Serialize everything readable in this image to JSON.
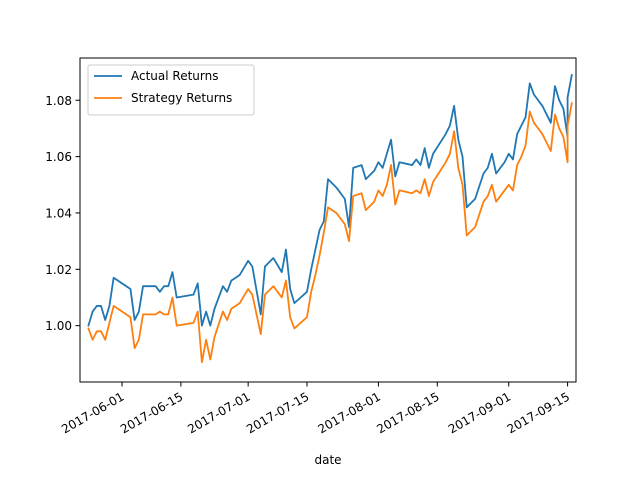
{
  "chart_data": {
    "type": "line",
    "title": "",
    "xlabel": "date",
    "ylabel": "",
    "x_axis_type": "date",
    "xlim": [
      "2017-05-22",
      "2017-09-17"
    ],
    "ylim": [
      0.98,
      1.095
    ],
    "x_ticks": [
      "2017-06-01",
      "2017-06-15",
      "2017-07-01",
      "2017-07-15",
      "2017-08-01",
      "2017-08-15",
      "2017-09-01",
      "2017-09-15"
    ],
    "y_ticks": [
      1.0,
      1.02,
      1.04,
      1.06,
      1.08
    ],
    "y_tick_labels": [
      "1.00",
      "1.02",
      "1.04",
      "1.06",
      "1.08"
    ],
    "grid": false,
    "legend": {
      "position": "upper-left",
      "entries": [
        "Actual Returns",
        "Strategy Returns"
      ]
    },
    "series": [
      {
        "name": "Actual Returns",
        "color": "#1f77b4",
        "points": [
          [
            "2017-05-24",
            1.0
          ],
          [
            "2017-05-25",
            1.005
          ],
          [
            "2017-05-26",
            1.007
          ],
          [
            "2017-05-27",
            1.007
          ],
          [
            "2017-05-28",
            1.002
          ],
          [
            "2017-05-29",
            1.007
          ],
          [
            "2017-05-30",
            1.017
          ],
          [
            "2017-06-03",
            1.013
          ],
          [
            "2017-06-04",
            1.002
          ],
          [
            "2017-06-05",
            1.005
          ],
          [
            "2017-06-06",
            1.014
          ],
          [
            "2017-06-09",
            1.014
          ],
          [
            "2017-06-10",
            1.012
          ],
          [
            "2017-06-11",
            1.014
          ],
          [
            "2017-06-12",
            1.014
          ],
          [
            "2017-06-13",
            1.019
          ],
          [
            "2017-06-14",
            1.01
          ],
          [
            "2017-06-18",
            1.011
          ],
          [
            "2017-06-19",
            1.015
          ],
          [
            "2017-06-20",
            1.0
          ],
          [
            "2017-06-21",
            1.005
          ],
          [
            "2017-06-22",
            1.0
          ],
          [
            "2017-06-23",
            1.006
          ],
          [
            "2017-06-25",
            1.014
          ],
          [
            "2017-06-26",
            1.012
          ],
          [
            "2017-06-27",
            1.016
          ],
          [
            "2017-06-29",
            1.018
          ],
          [
            "2017-07-01",
            1.023
          ],
          [
            "2017-07-02",
            1.021
          ],
          [
            "2017-07-04",
            1.004
          ],
          [
            "2017-07-05",
            1.021
          ],
          [
            "2017-07-07",
            1.024
          ],
          [
            "2017-07-09",
            1.019
          ],
          [
            "2017-07-10",
            1.027
          ],
          [
            "2017-07-11",
            1.013
          ],
          [
            "2017-07-12",
            1.008
          ],
          [
            "2017-07-15",
            1.012
          ],
          [
            "2017-07-16",
            1.02
          ],
          [
            "2017-07-17",
            1.027
          ],
          [
            "2017-07-18",
            1.034
          ],
          [
            "2017-07-19",
            1.037
          ],
          [
            "2017-07-20",
            1.052
          ],
          [
            "2017-07-22",
            1.049
          ],
          [
            "2017-07-24",
            1.045
          ],
          [
            "2017-07-25",
            1.035
          ],
          [
            "2017-07-26",
            1.056
          ],
          [
            "2017-07-28",
            1.057
          ],
          [
            "2017-07-29",
            1.052
          ],
          [
            "2017-07-31",
            1.055
          ],
          [
            "2017-08-01",
            1.058
          ],
          [
            "2017-08-02",
            1.056
          ],
          [
            "2017-08-03",
            1.061
          ],
          [
            "2017-08-04",
            1.066
          ],
          [
            "2017-08-05",
            1.053
          ],
          [
            "2017-08-06",
            1.058
          ],
          [
            "2017-08-09",
            1.057
          ],
          [
            "2017-08-10",
            1.059
          ],
          [
            "2017-08-11",
            1.057
          ],
          [
            "2017-08-12",
            1.063
          ],
          [
            "2017-08-13",
            1.056
          ],
          [
            "2017-08-14",
            1.061
          ],
          [
            "2017-08-17",
            1.068
          ],
          [
            "2017-08-18",
            1.071
          ],
          [
            "2017-08-19",
            1.078
          ],
          [
            "2017-08-20",
            1.066
          ],
          [
            "2017-08-21",
            1.06
          ],
          [
            "2017-08-22",
            1.042
          ],
          [
            "2017-08-24",
            1.045
          ],
          [
            "2017-08-26",
            1.054
          ],
          [
            "2017-08-27",
            1.056
          ],
          [
            "2017-08-28",
            1.061
          ],
          [
            "2017-08-29",
            1.054
          ],
          [
            "2017-08-31",
            1.058
          ],
          [
            "2017-09-01",
            1.061
          ],
          [
            "2017-09-02",
            1.059
          ],
          [
            "2017-09-03",
            1.068
          ],
          [
            "2017-09-04",
            1.071
          ],
          [
            "2017-09-05",
            1.074
          ],
          [
            "2017-09-06",
            1.086
          ],
          [
            "2017-09-07",
            1.082
          ],
          [
            "2017-09-09",
            1.078
          ],
          [
            "2017-09-11",
            1.072
          ],
          [
            "2017-09-12",
            1.085
          ],
          [
            "2017-09-13",
            1.08
          ],
          [
            "2017-09-14",
            1.077
          ],
          [
            "2017-09-15",
            1.067
          ],
          [
            "2017-09-15",
            1.081
          ],
          [
            "2017-09-16",
            1.089
          ]
        ]
      },
      {
        "name": "Strategy Returns",
        "color": "#ff7f0e",
        "points": [
          [
            "2017-05-24",
            0.999
          ],
          [
            "2017-05-25",
            0.995
          ],
          [
            "2017-05-26",
            0.998
          ],
          [
            "2017-05-27",
            0.998
          ],
          [
            "2017-05-28",
            0.995
          ],
          [
            "2017-05-29",
            1.001
          ],
          [
            "2017-05-30",
            1.007
          ],
          [
            "2017-06-03",
            1.003
          ],
          [
            "2017-06-04",
            0.992
          ],
          [
            "2017-06-05",
            0.995
          ],
          [
            "2017-06-06",
            1.004
          ],
          [
            "2017-06-09",
            1.004
          ],
          [
            "2017-06-10",
            1.005
          ],
          [
            "2017-06-11",
            1.004
          ],
          [
            "2017-06-12",
            1.004
          ],
          [
            "2017-06-13",
            1.01
          ],
          [
            "2017-06-14",
            1.0
          ],
          [
            "2017-06-18",
            1.001
          ],
          [
            "2017-06-19",
            1.005
          ],
          [
            "2017-06-20",
            0.987
          ],
          [
            "2017-06-21",
            0.995
          ],
          [
            "2017-06-22",
            0.988
          ],
          [
            "2017-06-23",
            0.996
          ],
          [
            "2017-06-25",
            1.005
          ],
          [
            "2017-06-26",
            1.002
          ],
          [
            "2017-06-27",
            1.006
          ],
          [
            "2017-06-29",
            1.008
          ],
          [
            "2017-07-01",
            1.013
          ],
          [
            "2017-07-02",
            1.011
          ],
          [
            "2017-07-04",
            0.997
          ],
          [
            "2017-07-05",
            1.011
          ],
          [
            "2017-07-07",
            1.014
          ],
          [
            "2017-07-09",
            1.01
          ],
          [
            "2017-07-10",
            1.016
          ],
          [
            "2017-07-11",
            1.003
          ],
          [
            "2017-07-12",
            0.999
          ],
          [
            "2017-07-15",
            1.003
          ],
          [
            "2017-07-16",
            1.012
          ],
          [
            "2017-07-17",
            1.018
          ],
          [
            "2017-07-18",
            1.025
          ],
          [
            "2017-07-19",
            1.033
          ],
          [
            "2017-07-20",
            1.042
          ],
          [
            "2017-07-22",
            1.04
          ],
          [
            "2017-07-24",
            1.036
          ],
          [
            "2017-07-25",
            1.03
          ],
          [
            "2017-07-26",
            1.046
          ],
          [
            "2017-07-28",
            1.047
          ],
          [
            "2017-07-29",
            1.041
          ],
          [
            "2017-07-31",
            1.044
          ],
          [
            "2017-08-01",
            1.048
          ],
          [
            "2017-08-02",
            1.046
          ],
          [
            "2017-08-03",
            1.05
          ],
          [
            "2017-08-04",
            1.057
          ],
          [
            "2017-08-05",
            1.043
          ],
          [
            "2017-08-06",
            1.048
          ],
          [
            "2017-08-09",
            1.047
          ],
          [
            "2017-08-10",
            1.048
          ],
          [
            "2017-08-11",
            1.047
          ],
          [
            "2017-08-12",
            1.052
          ],
          [
            "2017-08-13",
            1.046
          ],
          [
            "2017-08-14",
            1.051
          ],
          [
            "2017-08-17",
            1.058
          ],
          [
            "2017-08-18",
            1.061
          ],
          [
            "2017-08-19",
            1.069
          ],
          [
            "2017-08-20",
            1.056
          ],
          [
            "2017-08-21",
            1.05
          ],
          [
            "2017-08-22",
            1.032
          ],
          [
            "2017-08-24",
            1.035
          ],
          [
            "2017-08-26",
            1.044
          ],
          [
            "2017-08-27",
            1.046
          ],
          [
            "2017-08-28",
            1.05
          ],
          [
            "2017-08-29",
            1.044
          ],
          [
            "2017-08-31",
            1.048
          ],
          [
            "2017-09-01",
            1.05
          ],
          [
            "2017-09-02",
            1.048
          ],
          [
            "2017-09-03",
            1.057
          ],
          [
            "2017-09-04",
            1.06
          ],
          [
            "2017-09-05",
            1.064
          ],
          [
            "2017-09-06",
            1.076
          ],
          [
            "2017-09-07",
            1.072
          ],
          [
            "2017-09-09",
            1.068
          ],
          [
            "2017-09-11",
            1.062
          ],
          [
            "2017-09-12",
            1.075
          ],
          [
            "2017-09-13",
            1.07
          ],
          [
            "2017-09-14",
            1.067
          ],
          [
            "2017-09-15",
            1.058
          ],
          [
            "2017-09-15",
            1.071
          ],
          [
            "2017-09-16",
            1.079
          ]
        ]
      }
    ]
  }
}
